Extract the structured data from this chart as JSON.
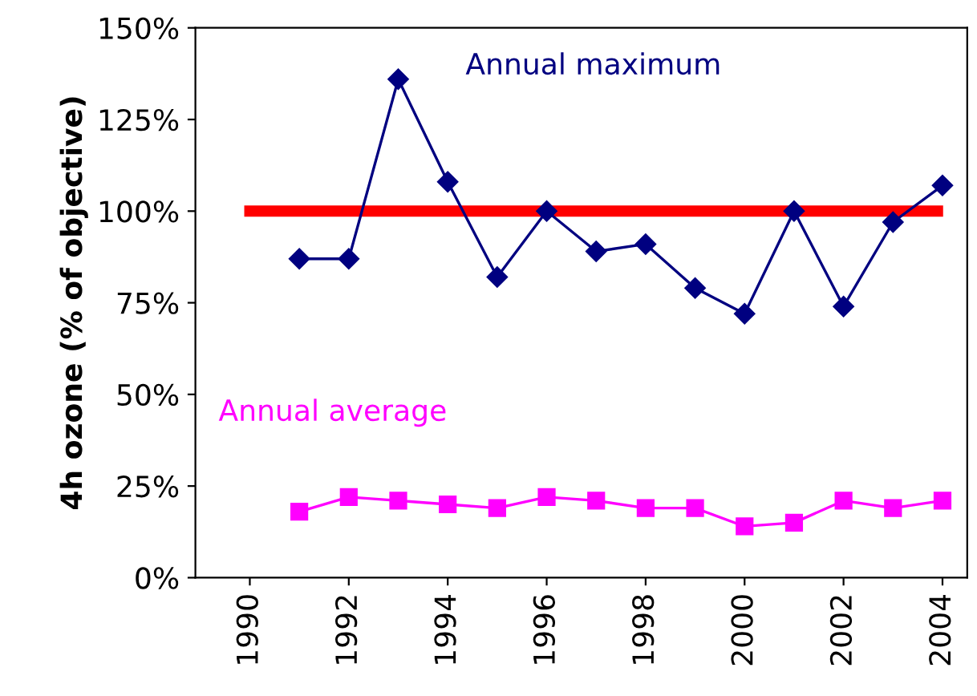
{
  "chart_data": {
    "type": "line",
    "ylabel": "4h ozone (% of objective)",
    "xlim": [
      1988.9,
      2004.5
    ],
    "xticks": [
      1990,
      1992,
      1994,
      1996,
      1998,
      2000,
      2002,
      2004
    ],
    "ylim": [
      0,
      150
    ],
    "yticks": [
      {
        "value": 0,
        "label": "0%"
      },
      {
        "value": 25,
        "label": "25%"
      },
      {
        "value": 50,
        "label": "50%"
      },
      {
        "value": 75,
        "label": "75%"
      },
      {
        "value": 100,
        "label": "100%"
      },
      {
        "value": 125,
        "label": "125%"
      },
      {
        "value": 150,
        "label": "150%"
      }
    ],
    "grid": false,
    "legend": false,
    "series": [
      {
        "type": "line",
        "color": "#ff0000",
        "x": [
          1990,
          2003.9
        ],
        "values": [
          100,
          100
        ],
        "marker": "none"
      },
      {
        "name": "Annual maximum",
        "color": "#000080",
        "marker": "diamond",
        "x": [
          1991,
          1992,
          1993,
          1994,
          1995,
          1996,
          1997,
          1998,
          1999,
          2000,
          2001,
          2002,
          2003,
          2004
        ],
        "values": [
          87,
          87,
          136,
          108,
          82,
          100,
          89,
          91,
          79,
          72,
          100,
          74,
          97,
          107
        ]
      },
      {
        "name": "Annual average",
        "color": "#ff00ff",
        "marker": "square",
        "x": [
          1991,
          1992,
          1993,
          1994,
          1995,
          1996,
          1997,
          1998,
          1999,
          2000,
          2001,
          2002,
          2003,
          2004
        ],
        "values": [
          18,
          22,
          21,
          20,
          19,
          22,
          21,
          19,
          19,
          14,
          15,
          21,
          19,
          21
        ]
      }
    ]
  }
}
